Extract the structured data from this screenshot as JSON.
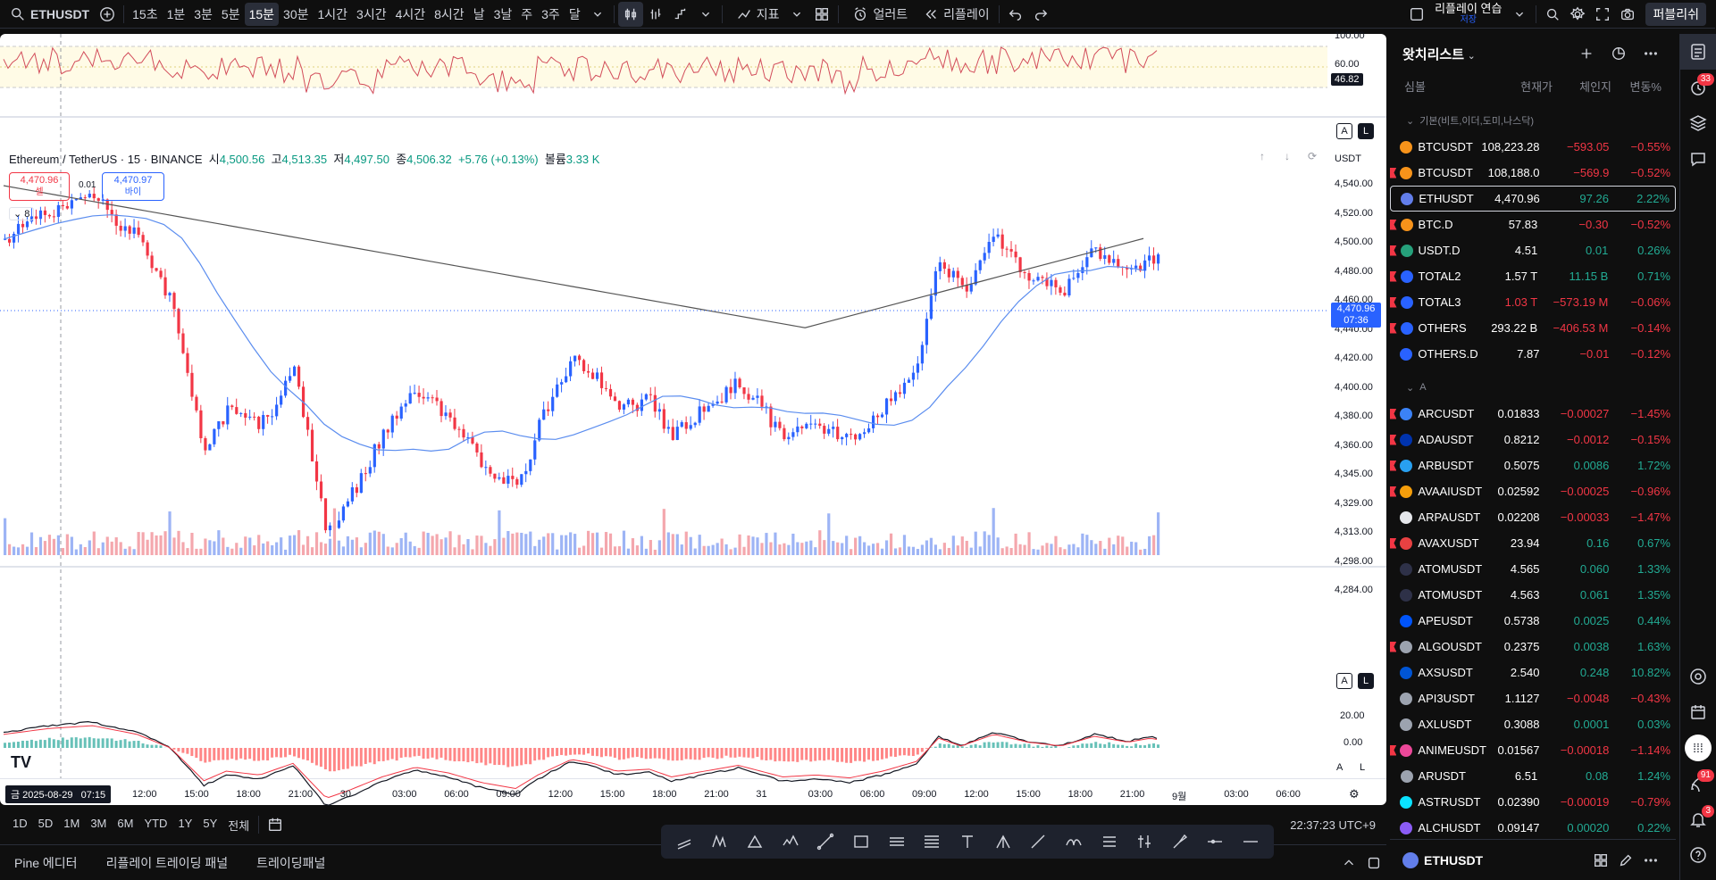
{
  "symbol": "ETHUSDT",
  "timeframes": [
    "15초",
    "1분",
    "3분",
    "5분",
    "15분",
    "30분",
    "1시간",
    "3시간",
    "4시간",
    "8시간",
    "날",
    "3날",
    "주",
    "3주",
    "달"
  ],
  "active_timeframe": "15분",
  "toolbar": {
    "indicators": "지표",
    "alert": "얼러트",
    "replay": "리플레이",
    "replay_practice": "리플레이 연습",
    "save": "저장",
    "publish": "퍼블리쉬"
  },
  "legend": {
    "title": "Ethereum / TetherUS · 15 · BINANCE",
    "o_label": "시",
    "o": "4,500.56",
    "h_label": "고",
    "h": "4,513.35",
    "l_label": "저",
    "l": "4,497.50",
    "c_label": "종",
    "c": "4,506.32",
    "change": "+5.76 (+0.13%)",
    "vol_label": "볼륨",
    "vol": "3.33 K"
  },
  "sell_box": {
    "price": "4,470.96",
    "label": "셀"
  },
  "buy_box": {
    "price": "4,470.97",
    "label": "바이"
  },
  "spread": "0.01",
  "collapse_count": "8",
  "currency": "USDT",
  "price_axis": [
    "4,540.00",
    "4,520.00",
    "4,500.00",
    "4,480.00",
    "4,460.00",
    "4,440.00",
    "4,420.00",
    "4,400.00",
    "4,380.00",
    "4,360.00",
    "4,345.00",
    "4,329.00",
    "4,313.00",
    "4,298.00",
    "4,284.00"
  ],
  "last_price": {
    "price": "4,470.96",
    "countdown": "07:36"
  },
  "rsi_axis": [
    "100.00",
    "60.00"
  ],
  "rsi_value": "46.82",
  "macd_axis": [
    "20.00",
    "0.00"
  ],
  "time_axis": [
    "12:00",
    "15:00",
    "18:00",
    "21:00",
    "30",
    "03:00",
    "06:00",
    "09:00",
    "12:00",
    "15:00",
    "18:00",
    "21:00",
    "31",
    "03:00",
    "06:00",
    "09:00",
    "12:00",
    "15:00",
    "18:00",
    "21:00",
    "9월",
    "03:00",
    "06:00"
  ],
  "crosshair_time": "금 2025-08-29   07:15",
  "ranges": [
    "1D",
    "5D",
    "1M",
    "3M",
    "6M",
    "YTD",
    "1Y",
    "5Y",
    "전체"
  ],
  "clock": "22:37:23 UTC+9",
  "footer_tabs": [
    "Pine 에디터",
    "리플레이 트레이딩 패널",
    "트레이딩패널"
  ],
  "watchlist": {
    "title": "왓치리스트",
    "columns": {
      "symbol": "심볼",
      "last": "현재가",
      "change": "체인지",
      "pct": "변동%"
    },
    "group1": "기본(비트,이더,도미,나스닥)",
    "group2": "A",
    "rows1": [
      {
        "sym": "BTCUSDT",
        "last": "108,223.28",
        "chg": "−593.05",
        "pct": "−0.55%",
        "flag": false,
        "ico": "#f7931a"
      },
      {
        "sym": "BTCUSDT",
        "last": "108,188.0",
        "chg": "−569.9",
        "pct": "−0.52%",
        "flag": true,
        "ico": "#f7931a"
      },
      {
        "sym": "ETHUSDT",
        "last": "4,470.96",
        "chg": "97.26",
        "pct": "2.22%",
        "flag": false,
        "ico": "#627eea",
        "sel": true
      },
      {
        "sym": "BTC.D",
        "last": "57.83",
        "chg": "−0.30",
        "pct": "−0.52%",
        "flag": true,
        "ico": "#f7931a"
      },
      {
        "sym": "USDT.D",
        "last": "4.51",
        "chg": "0.01",
        "pct": "0.26%",
        "flag": true,
        "ico": "#26a17b"
      },
      {
        "sym": "TOTAL2",
        "last": "1.57 T",
        "chg": "11.15 B",
        "pct": "0.71%",
        "flag": true,
        "ico": "#2962ff"
      },
      {
        "sym": "TOTAL3",
        "last": "1.03 T",
        "chg": "−573.19 M",
        "pct": "−0.06%",
        "flag": true,
        "ico": "#2962ff",
        "lastneg": true
      },
      {
        "sym": "OTHERS",
        "last": "293.22 B",
        "chg": "−406.53 M",
        "pct": "−0.14%",
        "flag": true,
        "ico": "#2962ff"
      },
      {
        "sym": "OTHERS.D",
        "last": "7.87",
        "chg": "−0.01",
        "pct": "−0.12%",
        "flag": false,
        "ico": "#2962ff"
      }
    ],
    "rows2": [
      {
        "sym": "ARCUSDT",
        "last": "0.01833",
        "chg": "−0.00027",
        "pct": "−1.45%",
        "flag": true,
        "ico": "#3b82f6"
      },
      {
        "sym": "ADAUSDT",
        "last": "0.8212",
        "chg": "−0.0012",
        "pct": "−0.15%",
        "flag": true,
        "ico": "#0033ad"
      },
      {
        "sym": "ARBUSDT",
        "last": "0.5075",
        "chg": "0.0086",
        "pct": "1.72%",
        "flag": true,
        "ico": "#28a0f0"
      },
      {
        "sym": "AVAAIUSDT",
        "last": "0.02592",
        "chg": "−0.00025",
        "pct": "−0.96%",
        "flag": true,
        "ico": "#f59e0b"
      },
      {
        "sym": "ARPAUSDT",
        "last": "0.02208",
        "chg": "−0.00033",
        "pct": "−1.47%",
        "flag": false,
        "ico": "#e5e7eb"
      },
      {
        "sym": "AVAXUSDT",
        "last": "23.94",
        "chg": "0.16",
        "pct": "0.67%",
        "flag": true,
        "ico": "#e84142"
      },
      {
        "sym": "ATOMUSDT",
        "last": "4.565",
        "chg": "0.060",
        "pct": "1.33%",
        "flag": false,
        "ico": "#2e3148"
      },
      {
        "sym": "ATOMUSDT",
        "last": "4.563",
        "chg": "0.061",
        "pct": "1.35%",
        "flag": false,
        "ico": "#2e3148"
      },
      {
        "sym": "APEUSDT",
        "last": "0.5738",
        "chg": "0.0025",
        "pct": "0.44%",
        "flag": false,
        "ico": "#0054f9"
      },
      {
        "sym": "ALGOUSDT",
        "last": "0.2375",
        "chg": "0.0038",
        "pct": "1.63%",
        "flag": true,
        "ico": "#9ca3af"
      },
      {
        "sym": "AXSUSDT",
        "last": "2.540",
        "chg": "0.248",
        "pct": "10.82%",
        "flag": false,
        "ico": "#0055d5"
      },
      {
        "sym": "API3USDT",
        "last": "1.1127",
        "chg": "−0.0048",
        "pct": "−0.43%",
        "flag": false,
        "ico": "#9ca3af"
      },
      {
        "sym": "AXLUSDT",
        "last": "0.3088",
        "chg": "0.0001",
        "pct": "0.03%",
        "flag": false,
        "ico": "#9ca3af"
      },
      {
        "sym": "ANIMEUSDT",
        "last": "0.01567",
        "chg": "−0.00018",
        "pct": "−1.14%",
        "flag": true,
        "ico": "#ec4899"
      },
      {
        "sym": "ARUSDT",
        "last": "6.51",
        "chg": "0.08",
        "pct": "1.24%",
        "flag": false,
        "ico": "#9ca3af"
      },
      {
        "sym": "ASTRUSDT",
        "last": "0.02390",
        "chg": "−0.00019",
        "pct": "−0.79%",
        "flag": false,
        "ico": "#0ae2ff"
      },
      {
        "sym": "ALCHUSDT",
        "last": "0.09147",
        "chg": "0.00020",
        "pct": "0.22%",
        "flag": false,
        "ico": "#8b5cf6"
      }
    ],
    "footer_symbol": "ETHUSDT"
  },
  "badges": {
    "alerts": "33",
    "notifications": "91",
    "messages": "3"
  }
}
